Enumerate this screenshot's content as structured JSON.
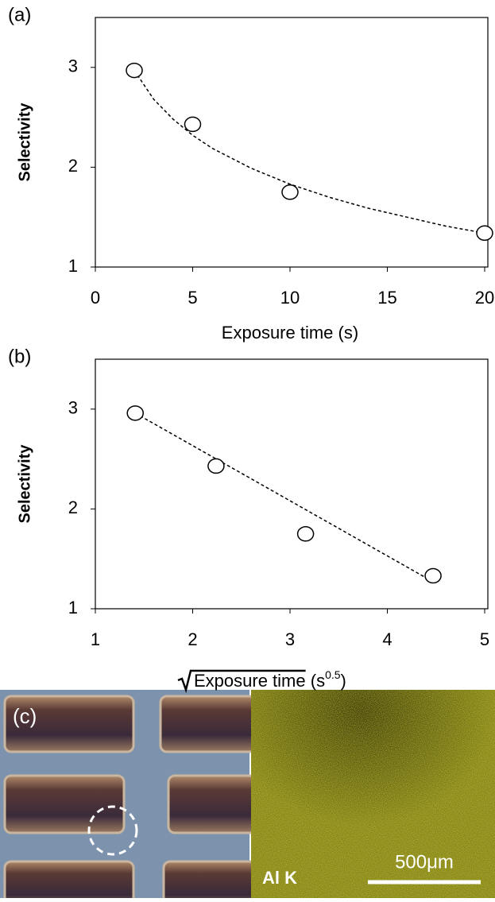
{
  "chart_data": [
    {
      "type": "scatter",
      "panel_label": "(a)",
      "xlabel": "Exposure time (s)",
      "ylabel": "Selectivity",
      "x": [
        2,
        5,
        10,
        20
      ],
      "values": [
        2.97,
        2.43,
        1.75,
        1.34
      ],
      "fit": {
        "x": [
          2,
          3,
          4,
          5,
          6,
          8,
          10,
          12,
          14,
          16,
          18,
          20
        ],
        "values": [
          2.97,
          2.68,
          2.48,
          2.32,
          2.19,
          1.99,
          1.83,
          1.7,
          1.59,
          1.5,
          1.41,
          1.34
        ]
      },
      "xlim": [
        0,
        20
      ],
      "xticks": [
        0,
        5,
        10,
        15,
        20
      ],
      "ylim": [
        1,
        3.5
      ],
      "yticks": [
        1,
        2,
        3
      ],
      "grid": false
    },
    {
      "type": "scatter",
      "panel_label": "(b)",
      "xlabel_parts": [
        "Exposure time",
        " (s",
        "0.5",
        ")"
      ],
      "ylabel": "Selectivity",
      "x": [
        1.41,
        2.24,
        3.16,
        4.47
      ],
      "values": [
        2.96,
        2.43,
        1.75,
        1.33
      ],
      "fit": {
        "x": [
          1.41,
          4.47
        ],
        "values": [
          2.96,
          1.27
        ]
      },
      "xlim": [
        1,
        5
      ],
      "xticks": [
        1,
        2,
        3,
        4,
        5
      ],
      "ylim": [
        1,
        3.5
      ],
      "yticks": [
        1,
        2,
        3
      ],
      "grid": false
    }
  ],
  "image_panel": {
    "panel_label": "(c)",
    "element_label": "Al K",
    "scale_label": "500μm"
  }
}
